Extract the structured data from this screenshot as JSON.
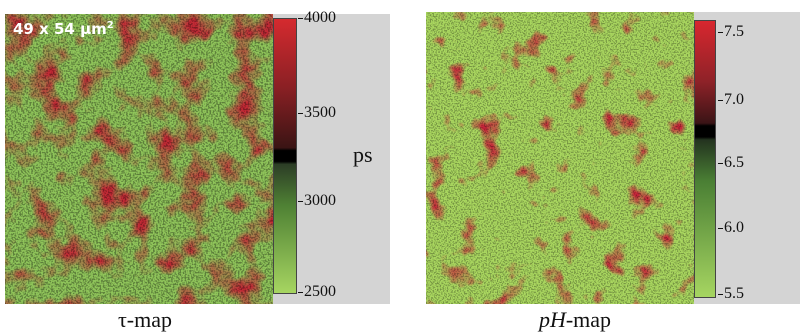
{
  "left_panel": {
    "area_label": "49 x 54 µm",
    "area_label_exponent": "2",
    "colorbar_ticks": [
      "4000",
      "3500",
      "3000",
      "2500"
    ],
    "unit": "ps",
    "caption": "τ-map"
  },
  "right_panel": {
    "colorbar_ticks": [
      "7.5",
      "7.0",
      "6.5",
      "6.0",
      "5.5"
    ],
    "caption_italic": "pH",
    "caption_rest": "-map"
  },
  "colors": {
    "red": "#c8283a",
    "dark_red": "#5a1b1e",
    "green_light": "#a6d561",
    "green_dark": "#2e4e2a",
    "black_band": "#000000",
    "scale_background": "#d4d4d4"
  }
}
